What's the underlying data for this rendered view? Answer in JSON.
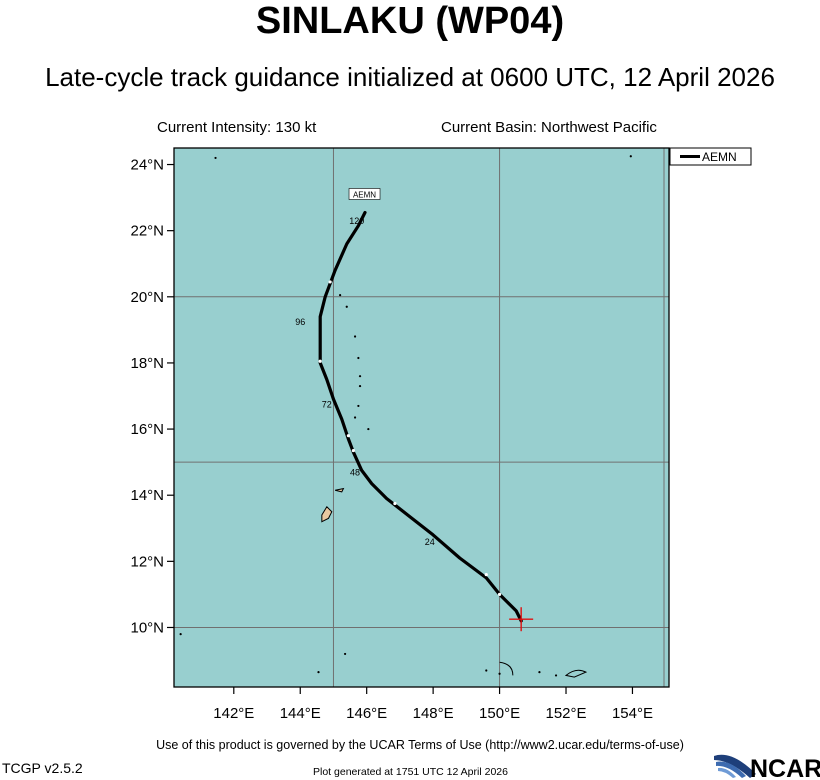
{
  "header": {
    "title": "SINLAKU (WP04)",
    "subtitle": "Late-cycle track guidance initialized at 0600 UTC, 12 April 2026",
    "intensity": "Current Intensity: 130 kt",
    "basin": "Current Basin: Northwest Pacific"
  },
  "map": {
    "lon_range": [
      140.2,
      155.1
    ],
    "lat_range": [
      8.2,
      24.5
    ],
    "grid_lons": [
      145,
      150
    ],
    "grid_lats": [
      15
    ],
    "lat_ticks": [
      {
        "value": 24,
        "label": "24°N"
      },
      {
        "value": 22,
        "label": "22°N"
      },
      {
        "value": 20,
        "label": "20°N"
      },
      {
        "value": 18,
        "label": "18°N"
      },
      {
        "value": 16,
        "label": "16°N"
      },
      {
        "value": 14,
        "label": "14°N"
      },
      {
        "value": 12,
        "label": "12°N"
      },
      {
        "value": 10,
        "label": "10°N"
      }
    ],
    "lon_ticks": [
      {
        "value": 142,
        "label": "142°E"
      },
      {
        "value": 144,
        "label": "144°E"
      },
      {
        "value": 146,
        "label": "146°E"
      },
      {
        "value": 148,
        "label": "148°E"
      },
      {
        "value": 150,
        "label": "150°E"
      },
      {
        "value": 152,
        "label": "152°E"
      },
      {
        "value": 154,
        "label": "154°E"
      }
    ],
    "colors": {
      "ocean": "#98cfcf",
      "land": "#ffffff",
      "grid": "#707070",
      "track": "#000000",
      "current_position": "#e01010"
    },
    "current_position": {
      "lon": 150.65,
      "lat": 10.25
    },
    "legend": {
      "label": "AEMN",
      "placement": "top-right"
    },
    "track": {
      "model": "AEMN",
      "model_label": "AEMN",
      "points": [
        {
          "lon": 150.65,
          "lat": 10.2
        },
        {
          "lon": 150.5,
          "lat": 10.5
        },
        {
          "lon": 150.0,
          "lat": 11.0
        },
        {
          "lon": 149.6,
          "lat": 11.5
        },
        {
          "lon": 148.8,
          "lat": 12.1
        },
        {
          "lon": 148.0,
          "lat": 12.8
        },
        {
          "lon": 147.3,
          "lat": 13.35
        },
        {
          "lon": 146.6,
          "lat": 13.9
        },
        {
          "lon": 146.15,
          "lat": 14.35
        },
        {
          "lon": 145.85,
          "lat": 14.75
        },
        {
          "lon": 145.6,
          "lat": 15.3
        },
        {
          "lon": 145.45,
          "lat": 15.7
        },
        {
          "lon": 145.25,
          "lat": 16.3
        },
        {
          "lon": 145.0,
          "lat": 16.9
        },
        {
          "lon": 144.8,
          "lat": 17.5
        },
        {
          "lon": 144.6,
          "lat": 18.0
        },
        {
          "lon": 144.6,
          "lat": 19.4
        },
        {
          "lon": 144.75,
          "lat": 20.0
        },
        {
          "lon": 145.05,
          "lat": 20.8
        },
        {
          "lon": 145.4,
          "lat": 21.6
        },
        {
          "lon": 145.75,
          "lat": 22.15
        },
        {
          "lon": 145.95,
          "lat": 22.55
        }
      ],
      "tick_points": [
        {
          "lon": 150.0,
          "lat": 11.0
        },
        {
          "lon": 149.6,
          "lat": 11.6
        },
        {
          "lon": 146.85,
          "lat": 13.75
        },
        {
          "lon": 145.6,
          "lat": 15.35
        },
        {
          "lon": 145.45,
          "lat": 15.8
        },
        {
          "lon": 144.6,
          "lat": 18.05
        },
        {
          "lon": 144.9,
          "lat": 20.45
        }
      ],
      "hour_labels": [
        {
          "text": "24",
          "lon": 147.9,
          "lat": 12.5
        },
        {
          "text": "48",
          "lon": 145.65,
          "lat": 14.6
        },
        {
          "text": "72",
          "lon": 144.8,
          "lat": 16.65
        },
        {
          "text": "96",
          "lon": 144.0,
          "lat": 19.15
        },
        {
          "text": "120",
          "lon": 145.7,
          "lat": 22.2
        }
      ]
    },
    "islands": [
      {
        "lon": 141.45,
        "lat": 24.2
      },
      {
        "lon": 153.95,
        "lat": 24.25
      },
      {
        "lon": 145.2,
        "lat": 20.05
      },
      {
        "lon": 145.4,
        "lat": 19.7
      },
      {
        "lon": 145.65,
        "lat": 18.8
      },
      {
        "lon": 145.75,
        "lat": 18.15
      },
      {
        "lon": 145.8,
        "lat": 17.6
      },
      {
        "lon": 145.8,
        "lat": 17.3
      },
      {
        "lon": 145.75,
        "lat": 16.7
      },
      {
        "lon": 145.65,
        "lat": 16.35
      },
      {
        "lon": 146.05,
        "lat": 16.0
      },
      {
        "lon": 145.7,
        "lat": 15.1
      },
      {
        "lon": 140.4,
        "lat": 9.8
      },
      {
        "lon": 144.55,
        "lat": 8.65
      },
      {
        "lon": 145.35,
        "lat": 9.2
      },
      {
        "lon": 149.6,
        "lat": 8.7
      },
      {
        "lon": 150.0,
        "lat": 8.6
      },
      {
        "lon": 151.2,
        "lat": 8.65
      },
      {
        "lon": 151.7,
        "lat": 8.55
      }
    ]
  },
  "footer": {
    "terms": "Use of this product is governed by the UCAR Terms of Use (http://www2.ucar.edu/terms-of-use)",
    "version": "TCGP v2.5.2",
    "generated": "Plot generated at 1751 UTC   12 April 2026",
    "logo_text": "NCAR"
  }
}
